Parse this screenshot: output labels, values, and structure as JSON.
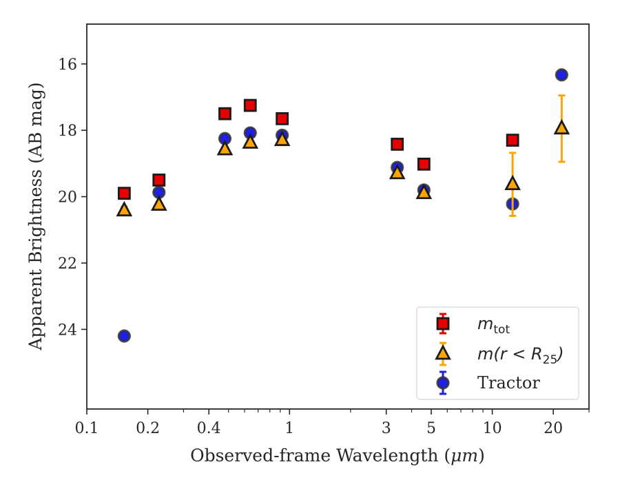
{
  "chart_data": {
    "type": "scatter",
    "xlabel_prefix": "Observed-frame Wavelength (",
    "xlabel_unit": "μm",
    "xlabel_suffix": ")",
    "ylabel": "Apparent Brightness (AB mag)",
    "x_scale": "log",
    "y_inverted": true,
    "xlim": [
      0.1,
      30
    ],
    "ylim": [
      26.4,
      14.8
    ],
    "x_ticks": [
      {
        "value": 0.1,
        "label": "0.1"
      },
      {
        "value": 0.2,
        "label": "0.2"
      },
      {
        "value": 0.4,
        "label": "0.4"
      },
      {
        "value": 1,
        "label": "1"
      },
      {
        "value": 3,
        "label": "3"
      },
      {
        "value": 5,
        "label": "5"
      },
      {
        "value": 10,
        "label": "10"
      },
      {
        "value": 20,
        "label": "20"
      }
    ],
    "x_minor_ticks": [
      0.3,
      0.5,
      0.6,
      0.7,
      0.8,
      0.9,
      2,
      4,
      6,
      7,
      8,
      9,
      30
    ],
    "y_ticks": [
      16,
      18,
      20,
      22,
      24
    ],
    "grid": false,
    "legend_position": "lower-right",
    "series": [
      {
        "name": "m_tot",
        "legend_main": "m",
        "legend_sub": "tot",
        "marker": "square",
        "color": "#e60000",
        "edge": "#1a1a1a",
        "errcolor": "#e60000",
        "points": [
          {
            "x": 0.153,
            "y": 19.9,
            "err": 0.05
          },
          {
            "x": 0.227,
            "y": 19.5,
            "err": 0.05
          },
          {
            "x": 0.48,
            "y": 17.5,
            "err": 0.05
          },
          {
            "x": 0.64,
            "y": 17.25,
            "err": 0.05
          },
          {
            "x": 0.92,
            "y": 17.65,
            "err": 0.05
          },
          {
            "x": 3.4,
            "y": 18.42,
            "err": 0.05
          },
          {
            "x": 4.6,
            "y": 19.02,
            "err": 0.05
          },
          {
            "x": 12.6,
            "y": 18.3,
            "err": 0.05
          }
        ]
      },
      {
        "name": "m(r < R_25)",
        "legend_main": "m(r < R",
        "legend_sub": "25",
        "legend_tail": ")",
        "marker": "triangle",
        "color": "#ffa500",
        "edge": "#1a1a1a",
        "errcolor": "#ffa500",
        "points": [
          {
            "x": 0.153,
            "y": 20.42,
            "err": 0.12
          },
          {
            "x": 0.227,
            "y": 20.25,
            "err": 0.05
          },
          {
            "x": 0.48,
            "y": 18.58,
            "err": 0.05
          },
          {
            "x": 0.64,
            "y": 18.38,
            "err": 0.05
          },
          {
            "x": 0.92,
            "y": 18.3,
            "err": 0.05
          },
          {
            "x": 3.4,
            "y": 19.3,
            "err": 0.05
          },
          {
            "x": 4.6,
            "y": 19.9,
            "err": 0.05
          },
          {
            "x": 12.6,
            "y": 19.63,
            "err": 0.95
          },
          {
            "x": 22.0,
            "y": 17.95,
            "err": 1.0
          }
        ]
      },
      {
        "name": "Tractor",
        "legend_main": "Tractor",
        "marker": "circle",
        "color": "#1f1fe6",
        "edge": "#333333",
        "errcolor": "#1f1fe6",
        "points": [
          {
            "x": 0.153,
            "y": 24.2,
            "err": 0.1
          },
          {
            "x": 0.227,
            "y": 19.87,
            "err": 0.05
          },
          {
            "x": 0.48,
            "y": 18.25,
            "err": 0.05
          },
          {
            "x": 0.64,
            "y": 18.08,
            "err": 0.05
          },
          {
            "x": 0.92,
            "y": 18.15,
            "err": 0.05
          },
          {
            "x": 3.4,
            "y": 19.12,
            "err": 0.05
          },
          {
            "x": 4.6,
            "y": 19.8,
            "err": 0.05
          },
          {
            "x": 12.6,
            "y": 20.22,
            "err": 0.05
          },
          {
            "x": 22.0,
            "y": 16.33,
            "err": 0.05
          }
        ]
      }
    ]
  }
}
